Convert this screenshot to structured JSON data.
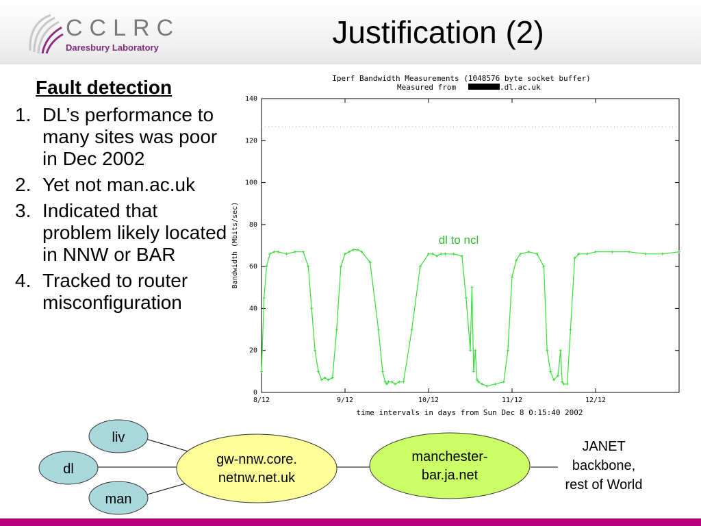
{
  "header": {
    "logo_text": "CCLRC",
    "logo_subtitle": "Daresbury Laboratory",
    "title": "Justification (2)"
  },
  "bullets": {
    "heading": "Fault detection",
    "items": [
      {
        "num": "1.",
        "text": "DL’s performance to many sites was poor in Dec 2002"
      },
      {
        "num": "2.",
        "text": "Yet not man.ac.uk"
      },
      {
        "num": "3.",
        "text": "Indicated that problem likely located in NNW or BAR"
      },
      {
        "num": "4.",
        "text": "Tracked to router misconfiguration"
      }
    ]
  },
  "chart_data": {
    "type": "line",
    "title": "Iperf Bandwidth Measurements (1048576 byte socket buffer)",
    "subtitle_prefix": "Measured from ",
    "subtitle_suffix": ".dl.ac.uk",
    "xlabel": "time intervals in days from Sun Dec  8  0:15:40 2002",
    "ylabel": "Bandwidth (Mbits/sec)",
    "xlim": [
      0,
      5.0
    ],
    "ylim": [
      0,
      140
    ],
    "yticks": [
      0,
      20,
      40,
      60,
      80,
      100,
      120,
      140
    ],
    "xtick_labels": [
      "8/12",
      "9/12",
      "10/12",
      "11/12",
      "12/12"
    ],
    "xtick_values": [
      0,
      1,
      2,
      3,
      4
    ],
    "grid": false,
    "series": [
      {
        "name": "dl to ncl",
        "color": "#33dd33",
        "x": [
          0.0,
          0.03,
          0.06,
          0.1,
          0.15,
          0.2,
          0.3,
          0.4,
          0.5,
          0.56,
          0.6,
          0.64,
          0.68,
          0.72,
          0.76,
          0.8,
          0.85,
          0.9,
          0.95,
          1.0,
          1.05,
          1.1,
          1.15,
          1.2,
          1.3,
          1.4,
          1.45,
          1.48,
          1.5,
          1.52,
          1.56,
          1.6,
          1.65,
          1.7,
          1.8,
          1.9,
          2.0,
          2.05,
          2.1,
          2.15,
          2.2,
          2.3,
          2.4,
          2.45,
          2.5,
          2.52,
          2.54,
          2.56,
          2.58,
          2.6,
          2.64,
          2.7,
          2.8,
          2.9,
          2.95,
          3.0,
          3.05,
          3.1,
          3.2,
          3.3,
          3.38,
          3.42,
          3.46,
          3.5,
          3.55,
          3.58,
          3.6,
          3.62,
          3.66,
          3.7,
          3.75,
          3.8,
          3.9,
          4.0,
          4.2,
          4.4,
          4.6,
          4.8,
          5.0
        ],
        "y": [
          10,
          45,
          60,
          66,
          67,
          67,
          66,
          67,
          67,
          60,
          40,
          20,
          10,
          6,
          7,
          6,
          7,
          30,
          60,
          66,
          67,
          68,
          68,
          67,
          62,
          30,
          10,
          5,
          4,
          5,
          5,
          4,
          5,
          5,
          30,
          60,
          66,
          66,
          65,
          66,
          66,
          66,
          65,
          45,
          20,
          50,
          10,
          20,
          6,
          5,
          4,
          3,
          4,
          5,
          20,
          55,
          63,
          66,
          67,
          66,
          60,
          20,
          10,
          6,
          8,
          20,
          5,
          4,
          4,
          30,
          64,
          66,
          66,
          67,
          67,
          67,
          66,
          66,
          67
        ]
      }
    ]
  },
  "diagram": {
    "nodes": {
      "liv": "liv",
      "dl": "dl",
      "man": "man",
      "gw_line1": "gw-nnw.core.",
      "gw_line2": "netnw.net.uk",
      "bar_line1": "manchester-",
      "bar_line2": "bar.ja.net",
      "janet_line1": "JANET",
      "janet_line2": "backbone,",
      "janet_line3": "rest of World"
    },
    "colors": {
      "site": "#a8d8dc",
      "gw": "#ffff99",
      "bar": "#ccff66",
      "accent": "#b4007a"
    }
  }
}
